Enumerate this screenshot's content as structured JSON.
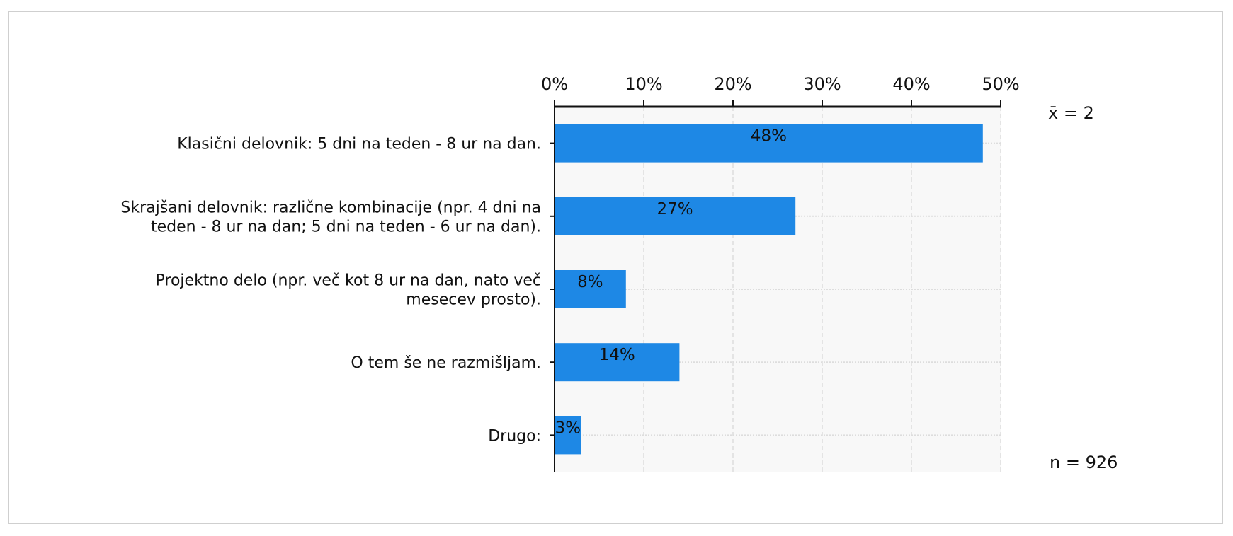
{
  "chart_data": {
    "type": "bar",
    "orientation": "horizontal",
    "categories": [
      [
        "Klasični delovnik: 5 dni na teden - 8 ur na dan."
      ],
      [
        "Skrajšani delovnik: različne kombinacije (npr.  4 dni na",
        "teden - 8 ur na dan; 5 dni na teden - 6 ur na dan)."
      ],
      [
        "Projektno delo (npr. več kot 8 ur na dan, nato več",
        "mesecev prosto)."
      ],
      [
        "O tem še ne razmišljam."
      ],
      [
        "Drugo:"
      ]
    ],
    "values": [
      48,
      27,
      8,
      14,
      3
    ],
    "value_labels": [
      "48%",
      "27%",
      "8%",
      "14%",
      "3%"
    ],
    "xlim": [
      0,
      50
    ],
    "x_ticks": [
      0,
      10,
      20,
      30,
      40,
      50
    ],
    "x_tick_labels": [
      "0%",
      "10%",
      "20%",
      "30%",
      "40%",
      "50%"
    ],
    "x_axis_position": "top",
    "grid": true,
    "mean_label": "x̄ = 2",
    "n_label": "n = 926",
    "colors": {
      "bar": "#1e88e5",
      "plot_bg": "#f8f8f8",
      "grid": "#dddddd",
      "frame": "#cfcfcf"
    }
  }
}
